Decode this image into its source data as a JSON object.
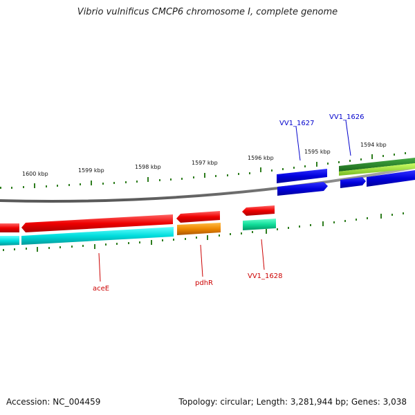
{
  "title": "Vibrio vulnificus CMCP6 chromosome I, complete genome",
  "footer": {
    "accession": "Accession: NC_004459",
    "summary": "Topology: circular; Length: 3,281,944 bp; Genes: 3,038"
  },
  "scale": {
    "unit": "kbp",
    "labels": [
      "1600 kbp",
      "1599 kbp",
      "1598 kbp",
      "1597 kbp",
      "1596 kbp",
      "1595 kbp",
      "1594 kbp"
    ]
  },
  "gene_labels": {
    "forward": [
      "VV1_1627",
      "VV1_1626"
    ],
    "reverse": [
      "aceE",
      "pdhR",
      "VV1_1628"
    ]
  },
  "colors": {
    "backbone": "#808080",
    "tick": "#2e7d1e",
    "forward_label": "#0000cc",
    "reverse_label": "#cc0000",
    "cds_forward": "#0000dd",
    "cds_reverse": "#ee0000",
    "cog_cyan": "#00dddd",
    "cog_orange": "#ee8800",
    "cog_teal": "#11dd99",
    "cog_green": "#228822",
    "cog_lime": "#99dd33"
  }
}
